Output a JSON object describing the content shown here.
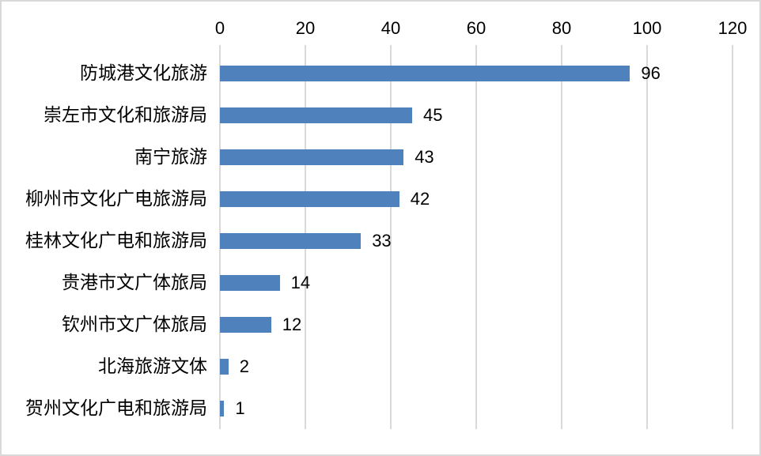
{
  "chart_data": {
    "type": "bar",
    "orientation": "horizontal",
    "title": "",
    "categories": [
      "防城港文化旅游",
      "崇左市文化和旅游局",
      "南宁旅游",
      "柳州市文化广电旅游局",
      "桂林文化广电和旅游局",
      "贵港市文广体旅局",
      "钦州市文广体旅局",
      "北海旅游文体",
      "贺州文化广电和旅游局"
    ],
    "values": [
      96,
      45,
      43,
      42,
      33,
      14,
      12,
      2,
      1
    ],
    "x_axis": {
      "position": "top",
      "min": 0,
      "max": 120,
      "tick_interval": 20,
      "tick_labels": [
        "0",
        "20",
        "40",
        "60",
        "80",
        "100",
        "120"
      ]
    },
    "data_labels_visible": true,
    "legend_visible": false,
    "grid": "vertical-only",
    "colors": {
      "bar": "#4f81bd",
      "gridline": "#d9d9d9",
      "text": "#000000",
      "background": "#ffffff",
      "border": "#d9d9d9"
    }
  }
}
